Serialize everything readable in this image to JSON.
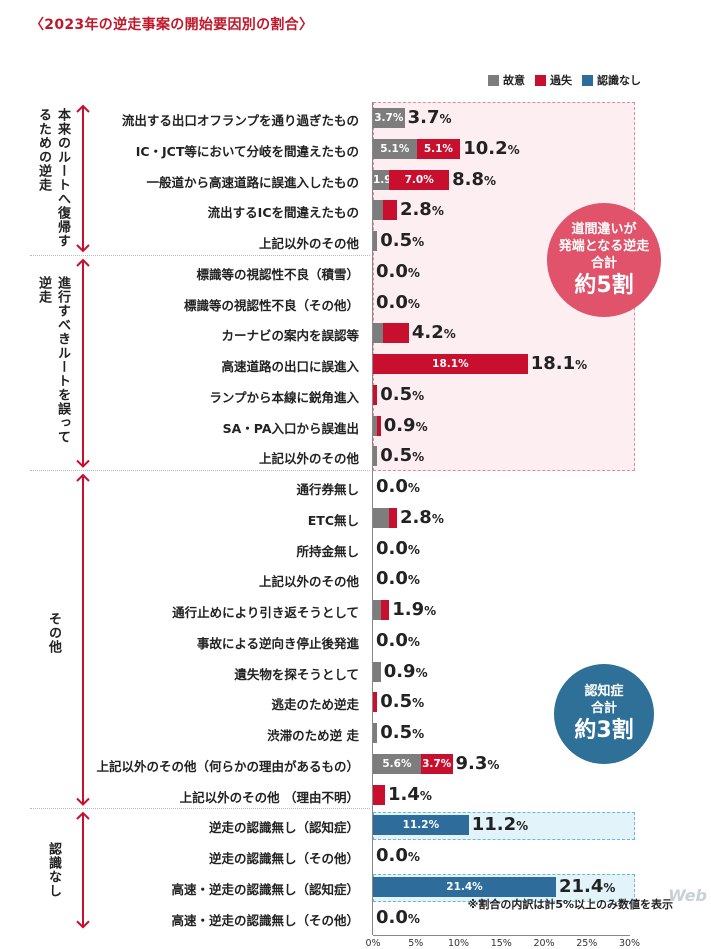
{
  "title": "〈2023年の逆走事案の開始要因別の割合〉",
  "colors": {
    "intent": "#7d7d7d",
    "negligence": "#c8102e",
    "unaware": "#2e6c9c",
    "red_region": "#fdeef1",
    "blue_region": "#e3f3fa",
    "red_badge": "#e0536a",
    "blue_badge": "#2f7099"
  },
  "legend": [
    {
      "label": "故意",
      "color": "#7d7d7d"
    },
    {
      "label": "過失",
      "color": "#c8102e"
    },
    {
      "label": "認識なし",
      "color": "#2e6c9c"
    }
  ],
  "groups": [
    {
      "label": "本来のルートへ復帰するための逆走",
      "start": 0,
      "end": 4
    },
    {
      "label": "進行すべきルートを誤って逆走",
      "start": 5,
      "end": 11
    },
    {
      "label": "その他",
      "start": 12,
      "end": 22
    },
    {
      "label": "認識なし",
      "start": 23,
      "end": 26
    }
  ],
  "badges": [
    {
      "lines": [
        "道間違いが",
        "発端となる逆走",
        "合計"
      ],
      "big": "約5割",
      "color": "#e0536a"
    },
    {
      "lines": [
        "認知症",
        "合計"
      ],
      "big": "約3割",
      "color": "#2f7099"
    }
  ],
  "axis": {
    "ticks": [
      "0%",
      "5%",
      "10%",
      "15%",
      "20%",
      "25%",
      "30%"
    ]
  },
  "note": "※割合の内訳は計5%以上のみ数値を表示",
  "watermark": "Web",
  "chart_data": {
    "type": "bar",
    "orientation": "horizontal",
    "stacked": true,
    "title": "〈2023年の逆走事案の開始要因別の割合〉",
    "xlim": [
      0,
      30
    ],
    "series_names": [
      "故意",
      "過失",
      "認識なし"
    ],
    "rows": [
      {
        "label": "流出する出口オフランプを通り過ぎたもの",
        "intent": 3.7,
        "neg": 0,
        "unaware": 0,
        "total_num": "3.7",
        "seg_labels": [
          "3.7%",
          "",
          ""
        ]
      },
      {
        "label": "IC・JCT等において分岐を間違えたもの",
        "intent": 5.1,
        "neg": 5.1,
        "unaware": 0,
        "total_num": "10.2",
        "seg_labels": [
          "5.1%",
          "5.1%",
          ""
        ]
      },
      {
        "label": "一般道から高速道路に誤進入したもの",
        "intent": 1.9,
        "neg": 7.0,
        "unaware": 0,
        "total_num": "8.8",
        "seg_labels": [
          "1.9%",
          "7.0%",
          ""
        ]
      },
      {
        "label": "流出するICを間違えたもの",
        "intent": 1.2,
        "neg": 1.6,
        "unaware": 0,
        "total_num": "2.8",
        "seg_labels": [
          "",
          "",
          ""
        ]
      },
      {
        "label": "上記以外のその他",
        "intent": 0.5,
        "neg": 0,
        "unaware": 0,
        "total_num": "0.5",
        "seg_labels": [
          "",
          "",
          ""
        ]
      },
      {
        "label": "標識等の視認性不良（積雪）",
        "intent": 0,
        "neg": 0,
        "unaware": 0,
        "total_num": "0.0",
        "seg_labels": [
          "",
          "",
          ""
        ]
      },
      {
        "label": "標識等の視認性不良（その他）",
        "intent": 0,
        "neg": 0,
        "unaware": 0,
        "total_num": "0.0",
        "seg_labels": [
          "",
          "",
          ""
        ]
      },
      {
        "label": "カーナビの案内を誤認等",
        "intent": 1.2,
        "neg": 3.0,
        "unaware": 0,
        "total_num": "4.2",
        "seg_labels": [
          "",
          "",
          ""
        ]
      },
      {
        "label": "高速道路の出口に誤進入",
        "intent": 0,
        "neg": 18.1,
        "unaware": 0,
        "total_num": "18.1",
        "seg_labels": [
          "",
          "18.1%",
          ""
        ]
      },
      {
        "label": "ランプから本線に鋭角進入",
        "intent": 0,
        "neg": 0.5,
        "unaware": 0,
        "total_num": "0.5",
        "seg_labels": [
          "",
          "",
          ""
        ]
      },
      {
        "label": "SA・PA入口から誤進出",
        "intent": 0.5,
        "neg": 0.4,
        "unaware": 0,
        "total_num": "0.9",
        "seg_labels": [
          "",
          "",
          ""
        ]
      },
      {
        "label": "上記以外のその他",
        "intent": 0.5,
        "neg": 0,
        "unaware": 0,
        "total_num": "0.5",
        "seg_labels": [
          "",
          "",
          ""
        ]
      },
      {
        "label": "通行券無し",
        "intent": 0,
        "neg": 0,
        "unaware": 0,
        "total_num": "0.0",
        "seg_labels": [
          "",
          "",
          ""
        ]
      },
      {
        "label": "ETC無し",
        "intent": 1.9,
        "neg": 0.9,
        "unaware": 0,
        "total_num": "2.8",
        "seg_labels": [
          "",
          "",
          ""
        ]
      },
      {
        "label": "所持金無し",
        "intent": 0,
        "neg": 0,
        "unaware": 0,
        "total_num": "0.0",
        "seg_labels": [
          "",
          "",
          ""
        ]
      },
      {
        "label": "上記以外のその他",
        "intent": 0,
        "neg": 0,
        "unaware": 0,
        "total_num": "0.0",
        "seg_labels": [
          "",
          "",
          ""
        ]
      },
      {
        "label": "通行止めにより引き返そうとして",
        "intent": 0.9,
        "neg": 1.0,
        "unaware": 0,
        "total_num": "1.9",
        "seg_labels": [
          "",
          "",
          ""
        ]
      },
      {
        "label": "事故による逆向き停止後発進",
        "intent": 0,
        "neg": 0,
        "unaware": 0,
        "total_num": "0.0",
        "seg_labels": [
          "",
          "",
          ""
        ]
      },
      {
        "label": "遺失物を探そうとして",
        "intent": 0.9,
        "neg": 0,
        "unaware": 0,
        "total_num": "0.9",
        "seg_labels": [
          "",
          "",
          ""
        ]
      },
      {
        "label": "逃走のため逆走",
        "intent": 0,
        "neg": 0.5,
        "unaware": 0,
        "total_num": "0.5",
        "seg_labels": [
          "",
          "",
          ""
        ]
      },
      {
        "label": "渋滞のため逆 走",
        "intent": 0.5,
        "neg": 0,
        "unaware": 0,
        "total_num": "0.5",
        "seg_labels": [
          "",
          "",
          ""
        ]
      },
      {
        "label": "上記以外のその他（何らかの理由があるもの）",
        "intent": 5.6,
        "neg": 3.7,
        "unaware": 0,
        "total_num": "9.3",
        "seg_labels": [
          "5.6%",
          "3.7%",
          ""
        ]
      },
      {
        "label": "上記以外のその他 （理由不明）",
        "intent": 0,
        "neg": 1.4,
        "unaware": 0,
        "total_num": "1.4",
        "seg_labels": [
          "",
          "",
          ""
        ]
      },
      {
        "label": "逆走の認識無し（認知症）",
        "intent": 0,
        "neg": 0,
        "unaware": 11.2,
        "total_num": "11.2",
        "seg_labels": [
          "",
          "",
          "11.2%"
        ]
      },
      {
        "label": "逆走の認識無し（その他）",
        "intent": 0,
        "neg": 0,
        "unaware": 0,
        "total_num": "0.0",
        "seg_labels": [
          "",
          "",
          ""
        ]
      },
      {
        "label": "高速・逆走の認識無し（認知症）",
        "intent": 0,
        "neg": 0,
        "unaware": 21.4,
        "total_num": "21.4",
        "seg_labels": [
          "",
          "",
          "21.4%"
        ]
      },
      {
        "label": "高速・逆走の認識無し（その他）",
        "intent": 0,
        "neg": 0,
        "unaware": 0,
        "total_num": "0.0",
        "seg_labels": [
          "",
          "",
          ""
        ]
      }
    ],
    "grid": false,
    "legend_position": "top-right"
  }
}
